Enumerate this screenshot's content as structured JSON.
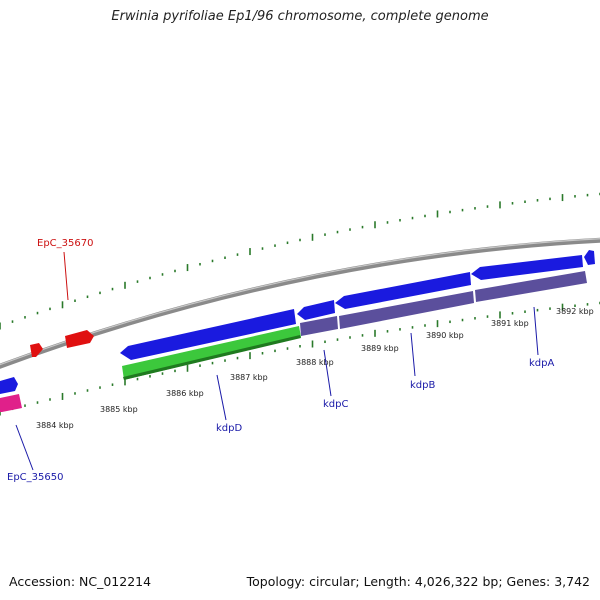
{
  "title": "Erwinia pyrifoliae Ep1/96 chromosome, complete genome",
  "footer": {
    "accession": "Accession: NC_012214",
    "stats": "Topology: circular; Length: 4,026,322 bp; Genes: 3,742"
  },
  "colors": {
    "backbone": "#8a8a8a",
    "cds_forward": "#1a1adf",
    "cds_reverse_purple": "#5b4f9c",
    "green": "#3cc83c",
    "red": "#e01010",
    "pink": "#e0208a",
    "tick": "#2a7a2a",
    "label_blue": "#1a1aa8",
    "label_red": "#cc1111"
  },
  "tick_labels": [
    "3884 kbp",
    "3885 kbp",
    "3886 kbp",
    "3887 kbp",
    "3888 kbp",
    "3889 kbp",
    "3890 kbp",
    "3891 kbp",
    "3892 kbp"
  ],
  "gene_labels": [
    {
      "text": "EpC_35670",
      "color": "red"
    },
    {
      "text": "EpC_35650",
      "color": "blue"
    },
    {
      "text": "kdpD",
      "color": "blue"
    },
    {
      "text": "kdpC",
      "color": "blue"
    },
    {
      "text": "kdpB",
      "color": "blue"
    },
    {
      "text": "kdpA",
      "color": "blue"
    }
  ]
}
